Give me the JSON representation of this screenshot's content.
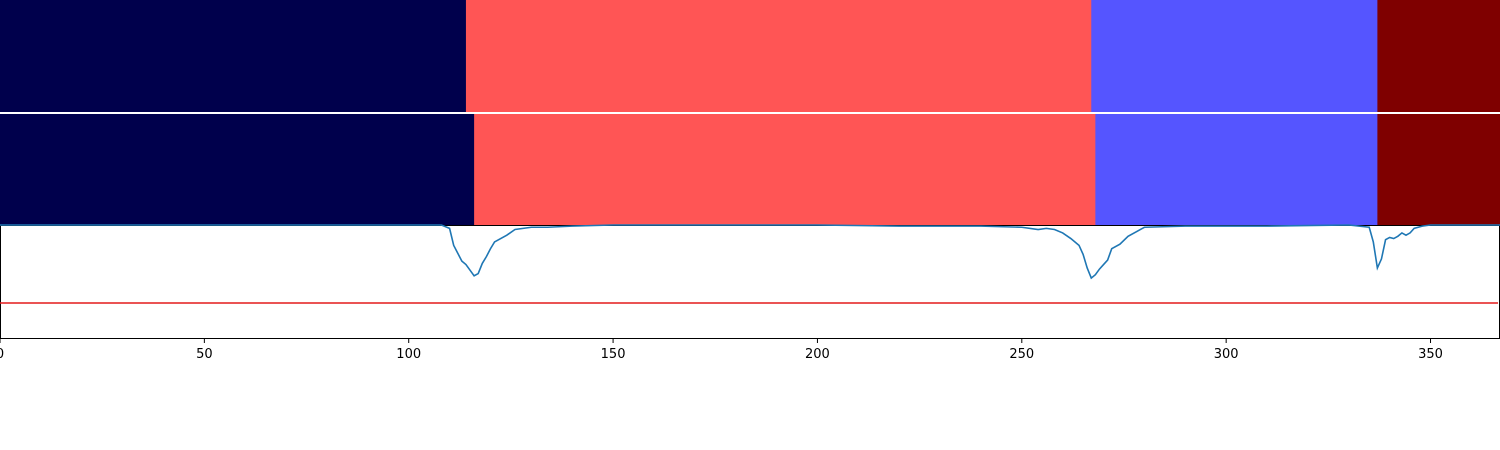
{
  "chart_data": [
    {
      "type": "heatmap",
      "panel": "segmentation-strip-1",
      "segments": [
        {
          "start": 0,
          "end": 114,
          "color": "#00004c"
        },
        {
          "start": 114,
          "end": 267,
          "color": "#ff5555"
        },
        {
          "start": 267,
          "end": 337,
          "color": "#5555ff"
        },
        {
          "start": 337,
          "end": 367,
          "color": "#7f0000"
        }
      ]
    },
    {
      "type": "heatmap",
      "panel": "segmentation-strip-2",
      "segments": [
        {
          "start": 0,
          "end": 116,
          "color": "#00004c"
        },
        {
          "start": 116,
          "end": 268,
          "color": "#ff5555"
        },
        {
          "start": 268,
          "end": 337,
          "color": "#5555ff"
        },
        {
          "start": 337,
          "end": 367,
          "color": "#7f0000"
        }
      ]
    },
    {
      "type": "line",
      "panel": "score-trace",
      "xlim": [
        0,
        367
      ],
      "ylim": [
        0,
        1
      ],
      "xticks": [
        0,
        50,
        100,
        150,
        200,
        250,
        300,
        350
      ],
      "threshold": {
        "y": 0.31,
        "color": "#e41a1c"
      },
      "series": [
        {
          "color": "#1f77b4",
          "x": [
            0,
            20,
            40,
            60,
            80,
            100,
            108,
            110,
            111,
            112,
            113,
            114,
            115,
            116,
            117,
            118,
            119,
            120,
            121,
            122,
            124,
            126,
            130,
            134,
            140,
            150,
            170,
            200,
            220,
            240,
            250,
            254,
            256,
            258,
            260,
            262,
            264,
            265,
            266,
            267,
            268,
            269,
            270,
            271,
            272,
            274,
            276,
            278,
            280,
            290,
            310,
            330,
            335,
            336,
            337,
            338,
            339,
            340,
            341,
            342,
            343,
            344,
            345,
            346,
            348,
            350,
            355,
            367
          ],
          "y": [
            1.0,
            1.0,
            1.0,
            1.0,
            1.0,
            1.0,
            1.0,
            0.97,
            0.82,
            0.75,
            0.68,
            0.65,
            0.6,
            0.55,
            0.57,
            0.66,
            0.72,
            0.79,
            0.85,
            0.87,
            0.91,
            0.96,
            0.98,
            0.98,
            0.99,
            1.0,
            1.0,
            1.0,
            0.99,
            0.99,
            0.98,
            0.96,
            0.97,
            0.96,
            0.93,
            0.88,
            0.82,
            0.74,
            0.62,
            0.53,
            0.56,
            0.61,
            0.65,
            0.69,
            0.79,
            0.83,
            0.9,
            0.94,
            0.98,
            0.99,
            0.99,
            1.0,
            0.98,
            0.85,
            0.62,
            0.7,
            0.87,
            0.89,
            0.88,
            0.9,
            0.93,
            0.91,
            0.93,
            0.97,
            0.99,
            1.0,
            1.0,
            1.0
          ]
        }
      ]
    }
  ]
}
